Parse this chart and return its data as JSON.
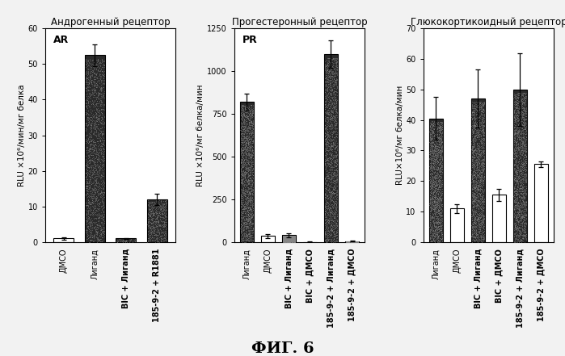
{
  "panel1": {
    "title": "Андрогенный рецептор",
    "label": "AR",
    "ylabel": "RLU ×10⁶/мин/мг белка",
    "categories": [
      "ДМСО",
      "Лиганд",
      "BIC + Лиганд",
      "185-9-2 + R1881"
    ],
    "values": [
      1.0,
      52.5,
      1.0,
      12.0
    ],
    "errors": [
      0.3,
      3.0,
      0.2,
      1.5
    ],
    "colors": [
      "white",
      "black",
      "black",
      "black"
    ],
    "bold_label": [
      false,
      false,
      true,
      true
    ],
    "ylim": [
      0,
      60
    ],
    "yticks": [
      0,
      10,
      20,
      30,
      40,
      50,
      60
    ]
  },
  "panel2": {
    "title": "Прогестеронный рецептор",
    "label": "PR",
    "ylabel": "RLU ×10⁶/мг белка/мин",
    "categories": [
      "Лиганд",
      "ДМСО",
      "BIC + Лиганд",
      "BIC + ДМСО",
      "185-9-2 + Лиганд",
      "185-9-2 + ДМСО"
    ],
    "values": [
      820,
      35,
      40,
      0,
      1100,
      5
    ],
    "errors": [
      50,
      10,
      10,
      2,
      80,
      2
    ],
    "colors": [
      "black",
      "white",
      "black",
      "black",
      "black",
      "black"
    ],
    "bold_label": [
      false,
      false,
      true,
      true,
      true,
      true
    ],
    "ylim": [
      0,
      1250
    ],
    "yticks": [
      0,
      250,
      500,
      750,
      1000,
      1250
    ]
  },
  "panel3": {
    "title": "Глюкокортикоидный рецептор",
    "label": "",
    "ylabel": "RLU×10⁶/мг белка/мин",
    "categories": [
      "Лиганд",
      "ДМСО",
      "BIC + Лиганд",
      "BIC + ДМСО",
      "185-9-2 + Лиганд",
      "185-9-2 + ДМСО"
    ],
    "values": [
      40.5,
      11.0,
      47.0,
      15.5,
      50.0,
      25.5
    ],
    "errors": [
      7.0,
      1.5,
      9.5,
      2.0,
      12.0,
      1.0
    ],
    "colors": [
      "black",
      "white",
      "black",
      "white",
      "black",
      "white"
    ],
    "bold_label": [
      false,
      false,
      true,
      true,
      true,
      true
    ],
    "ylim": [
      0,
      70
    ],
    "yticks": [
      0,
      10,
      20,
      30,
      40,
      50,
      60,
      70
    ]
  },
  "fig_label": "ФИГ. 6",
  "background_color": "#f0f0f0",
  "bar_edge_color": "black",
  "bar_width": 0.65
}
